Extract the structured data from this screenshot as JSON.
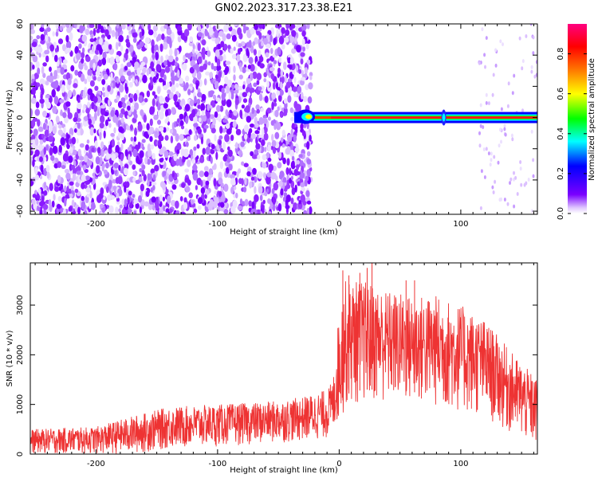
{
  "chart_data": [
    {
      "type": "heatmap",
      "title": "GN02.2023.317.23.38.E21",
      "xlabel": "Height of straight line (km)",
      "ylabel": "Frequency (Hz)",
      "xlim": [
        -254,
        163
      ],
      "ylim": [
        -62,
        60
      ],
      "x_ticks": [
        -200,
        -100,
        0,
        100
      ],
      "y_ticks": [
        -60,
        -40,
        -20,
        0,
        20,
        40,
        60
      ],
      "grid": false,
      "noise_region_x": [
        -254,
        -27
      ],
      "signal": {
        "x_start": -33,
        "x_end": 163,
        "center_frequency": 0,
        "secondary_burst_x": 86
      },
      "sparse_noise_x": [
        115,
        163
      ],
      "colorbar": {
        "label": "Normalized spectral amplitude",
        "range": [
          0,
          0.95
        ],
        "ticks": [
          0.0,
          0.2,
          0.4,
          0.6,
          0.8
        ],
        "tick_labels": [
          "0.0",
          "0.2",
          "0.4",
          "0.6",
          "0.8"
        ],
        "colors": [
          "#ffffff",
          "#7a00ff",
          "#0000ff",
          "#00ffff",
          "#00ff00",
          "#ffff00",
          "#ff7f00",
          "#ff0000",
          "#ff0080"
        ]
      }
    },
    {
      "type": "area",
      "xlabel": "Height of straight line (km)",
      "ylabel": "SNR (10 * v/v)",
      "xlim": [
        -254,
        163
      ],
      "ylim": [
        0,
        3850
      ],
      "x_ticks": [
        -200,
        -100,
        0,
        100
      ],
      "y_ticks": [
        0,
        1000,
        2000,
        3000
      ],
      "grid": false,
      "color": "#ee3333",
      "envelope": {
        "x": [
          -254,
          -200,
          -165,
          -140,
          -100,
          -60,
          -30,
          -10,
          -5,
          0,
          5,
          20,
          40,
          60,
          80,
          100,
          120,
          140,
          163
        ],
        "lower": [
          0,
          0,
          0,
          100,
          150,
          200,
          250,
          300,
          400,
          600,
          900,
          1000,
          1000,
          950,
          900,
          800,
          700,
          400,
          100
        ],
        "upper": [
          500,
          550,
          800,
          950,
          1000,
          1050,
          1150,
          1300,
          1500,
          2900,
          3500,
          3500,
          3300,
          3200,
          3200,
          3000,
          2700,
          2100,
          1500
        ],
        "peaks_x": [
          3,
          8,
          17,
          23,
          27,
          55,
          62
        ],
        "peaks_y": [
          3700,
          3600,
          3650,
          3750,
          3850,
          3500,
          3500
        ]
      }
    }
  ]
}
